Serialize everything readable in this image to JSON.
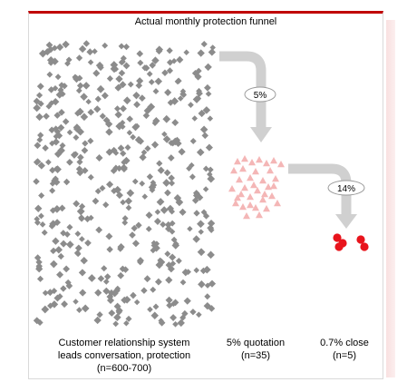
{
  "title": "Actual monthly protection funnel",
  "conversions": {
    "first": "5%",
    "second": "14%"
  },
  "stages": [
    {
      "line1": "Customer relationship system",
      "line2": "leads conversation, protection",
      "line3": "(n=600-700)"
    },
    {
      "line1": "5% quotation",
      "line2": "(n=35)"
    },
    {
      "line1": "0.7% close",
      "line2": "(n=5)"
    }
  ],
  "colors": {
    "leads": "#8c8c8c",
    "quotes": "#f4b6b6",
    "closes": "#e8141c",
    "arrow": "#d0d0d0",
    "accent": "#c00000"
  }
}
